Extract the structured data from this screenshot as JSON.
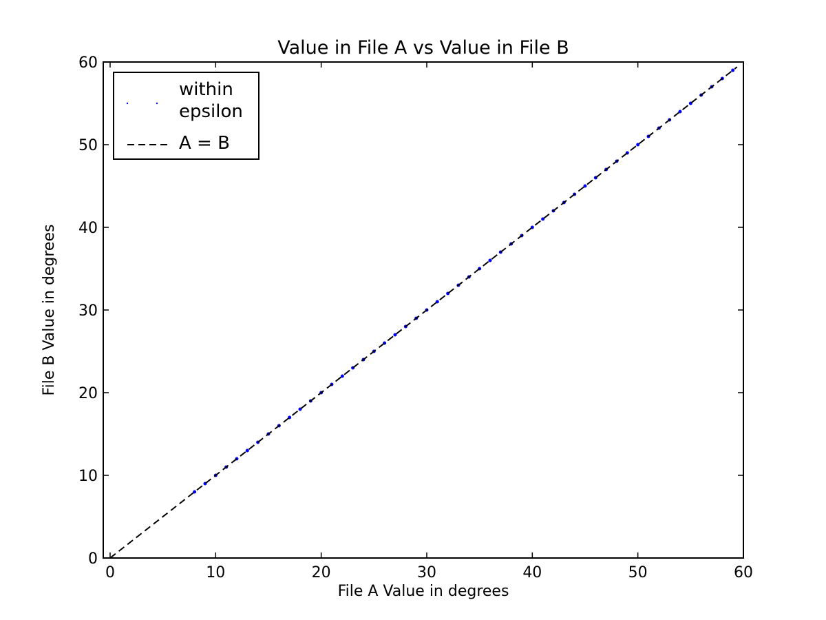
{
  "chart_data": {
    "type": "scatter",
    "title": "Value in File A vs Value in File B",
    "xlabel": "File A Value in degrees",
    "ylabel": "File B Value in degrees",
    "xlim": [
      -0.65,
      60
    ],
    "ylim": [
      0,
      60
    ],
    "xticks": [
      0,
      10,
      20,
      30,
      40,
      50,
      60
    ],
    "yticks": [
      0,
      10,
      20,
      30,
      40,
      50,
      60
    ],
    "legend": "upper left",
    "series": [
      {
        "name": "within epsilon",
        "type": "scatter",
        "color": "#0000ff",
        "x": [
          8,
          9,
          10,
          11,
          12,
          13,
          14,
          15,
          16,
          17,
          18,
          19,
          20,
          21,
          22,
          23,
          24,
          25,
          26,
          27,
          28,
          29,
          30,
          31,
          32,
          33,
          34,
          35,
          36,
          37,
          38,
          39,
          40,
          41,
          42,
          43,
          44,
          45,
          46,
          47,
          48,
          49,
          50,
          51,
          52,
          53,
          54,
          55,
          56,
          57,
          58,
          59
        ],
        "values": [
          8,
          9,
          10,
          11,
          12,
          13,
          14,
          15,
          16,
          17,
          18,
          19,
          20,
          21,
          22,
          23,
          24,
          25,
          26,
          27,
          28,
          29,
          30,
          31,
          32,
          33,
          34,
          35,
          36,
          37,
          38,
          39,
          40,
          41,
          42,
          43,
          44,
          45,
          46,
          47,
          48,
          49,
          50,
          51,
          52,
          53,
          54,
          55,
          56,
          57,
          58,
          59
        ]
      },
      {
        "name": "A = B",
        "type": "line",
        "color": "#000000",
        "dash": true,
        "x": [
          0,
          59.4
        ],
        "values": [
          0,
          59.4
        ]
      }
    ]
  }
}
